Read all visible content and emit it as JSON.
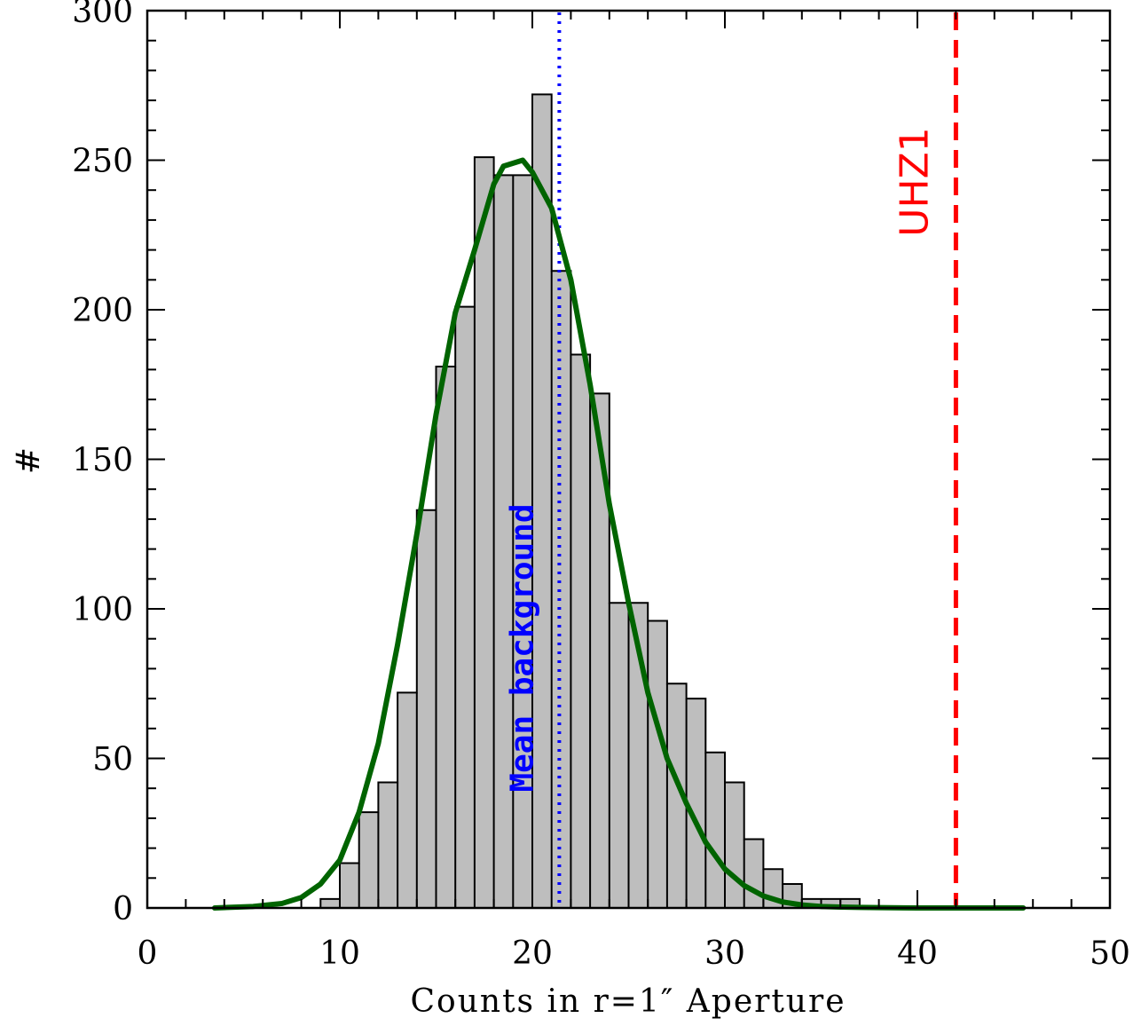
{
  "chart_data": {
    "type": "bar",
    "xlabel": "Counts in r=1″ Aperture",
    "ylabel": "#",
    "xlim": [
      0,
      50
    ],
    "ylim": [
      0,
      300
    ],
    "xticks": [
      0,
      10,
      20,
      30,
      40,
      50
    ],
    "yticks": [
      0,
      50,
      100,
      150,
      200,
      250,
      300
    ],
    "grid": false,
    "histogram": {
      "bin_width": 1,
      "bins": [
        {
          "x": 9,
          "count": 3
        },
        {
          "x": 10,
          "count": 15
        },
        {
          "x": 11,
          "count": 32
        },
        {
          "x": 12,
          "count": 42
        },
        {
          "x": 13,
          "count": 72
        },
        {
          "x": 14,
          "count": 133
        },
        {
          "x": 15,
          "count": 181
        },
        {
          "x": 16,
          "count": 201
        },
        {
          "x": 17,
          "count": 251
        },
        {
          "x": 18,
          "count": 245
        },
        {
          "x": 19,
          "count": 245
        },
        {
          "x": 20,
          "count": 272
        },
        {
          "x": 21,
          "count": 213
        },
        {
          "x": 22,
          "count": 185
        },
        {
          "x": 23,
          "count": 172
        },
        {
          "x": 24,
          "count": 102
        },
        {
          "x": 25,
          "count": 102
        },
        {
          "x": 26,
          "count": 96
        },
        {
          "x": 27,
          "count": 75
        },
        {
          "x": 28,
          "count": 70
        },
        {
          "x": 29,
          "count": 52
        },
        {
          "x": 30,
          "count": 42
        },
        {
          "x": 31,
          "count": 23
        },
        {
          "x": 32,
          "count": 13
        },
        {
          "x": 33,
          "count": 8
        },
        {
          "x": 34,
          "count": 3
        },
        {
          "x": 35,
          "count": 3
        },
        {
          "x": 36,
          "count": 3
        }
      ],
      "fill_color": "#bebebe",
      "edge_color": "#000000"
    },
    "gaussian_fit": {
      "color": "#006400",
      "x": [
        3.5,
        5.5,
        7.0,
        8.0,
        9.0,
        10.0,
        11.0,
        12.0,
        13.0,
        14.0,
        15.0,
        16.0,
        17.0,
        18.0,
        18.5,
        19.5,
        20.0,
        21.0,
        22.0,
        23.0,
        24.0,
        25.0,
        26.0,
        27.0,
        28.0,
        29.0,
        30.0,
        31.0,
        32.0,
        33.0,
        34.0,
        35.0,
        36.0,
        37.0,
        38.0,
        40.0,
        42.0,
        45.5
      ],
      "y": [
        0,
        0.5,
        1.5,
        3.5,
        8,
        16,
        32,
        55,
        88,
        125,
        165,
        199,
        220,
        242,
        248,
        250,
        246,
        234,
        210,
        175,
        135,
        102,
        72,
        50,
        35,
        22,
        13,
        7.5,
        4,
        2,
        1,
        0.5,
        0.3,
        0.2,
        0.1,
        0,
        0,
        0
      ]
    },
    "annotations": [
      {
        "label": "Mean background",
        "x": 21.4,
        "color": "#0000ff",
        "style": "dotted"
      },
      {
        "label": "UHZ1",
        "x": 42,
        "color": "#ff0000",
        "style": "dashed"
      }
    ]
  }
}
